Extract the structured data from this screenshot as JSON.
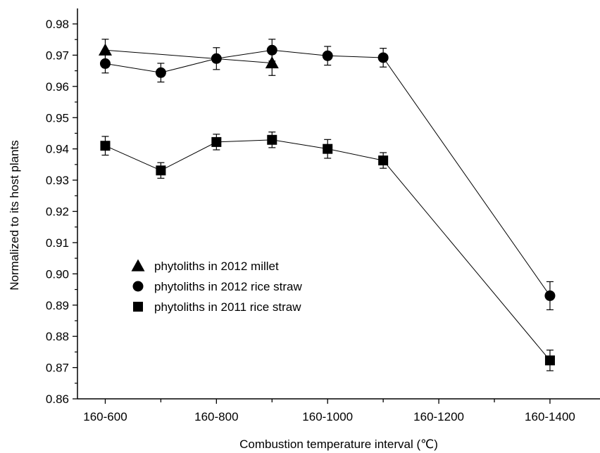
{
  "chart_data": {
    "type": "line",
    "xlabel": "Combustion temperature interval (℃)",
    "ylabel": "Normalized to its host plants",
    "ylim": [
      0.86,
      0.98
    ],
    "yticks": [
      "0.86",
      "0.87",
      "0.88",
      "0.89",
      "0.90",
      "0.91",
      "0.92",
      "0.93",
      "0.94",
      "0.95",
      "0.96",
      "0.97",
      "0.98"
    ],
    "x_range": [
      -0.5,
      8.9
    ],
    "x_ticks": [
      0,
      1,
      2,
      3,
      4,
      5,
      6,
      7,
      8
    ],
    "x_tick_labels": [
      {
        "x": 0,
        "label": "160-600"
      },
      {
        "x": 2,
        "label": "160-800"
      },
      {
        "x": 4,
        "label": "160-1000"
      },
      {
        "x": 6,
        "label": "160-1200"
      },
      {
        "x": 8,
        "label": "160-1400"
      }
    ],
    "legend_position": "bottom-left",
    "series": [
      {
        "name": "phytoliths in 2012 millet",
        "marker": "triangle",
        "points": [
          {
            "x": 0,
            "y": 0.9716,
            "err": 0.0035
          },
          {
            "x": 3,
            "y": 0.9675,
            "err": 0.004
          }
        ]
      },
      {
        "name": "phytoliths in 2012 rice straw",
        "marker": "circle",
        "points": [
          {
            "x": 0,
            "y": 0.9673,
            "err": 0.003
          },
          {
            "x": 1,
            "y": 0.9644,
            "err": 0.003
          },
          {
            "x": 2,
            "y": 0.9689,
            "err": 0.0035
          },
          {
            "x": 3,
            "y": 0.9716,
            "err": 0.0035
          },
          {
            "x": 4,
            "y": 0.9698,
            "err": 0.003
          },
          {
            "x": 5,
            "y": 0.9692,
            "err": 0.003
          },
          {
            "x": 8,
            "y": 0.893,
            "err": 0.0045
          }
        ]
      },
      {
        "name": "phytoliths in 2011 rice straw",
        "marker": "square",
        "points": [
          {
            "x": 0,
            "y": 0.941,
            "err": 0.003
          },
          {
            "x": 1,
            "y": 0.9331,
            "err": 0.0025
          },
          {
            "x": 2,
            "y": 0.9422,
            "err": 0.0025
          },
          {
            "x": 3,
            "y": 0.9429,
            "err": 0.0025
          },
          {
            "x": 4,
            "y": 0.94,
            "err": 0.003
          },
          {
            "x": 5,
            "y": 0.9363,
            "err": 0.0025
          },
          {
            "x": 8,
            "y": 0.8723,
            "err": 0.0033
          }
        ]
      }
    ]
  }
}
